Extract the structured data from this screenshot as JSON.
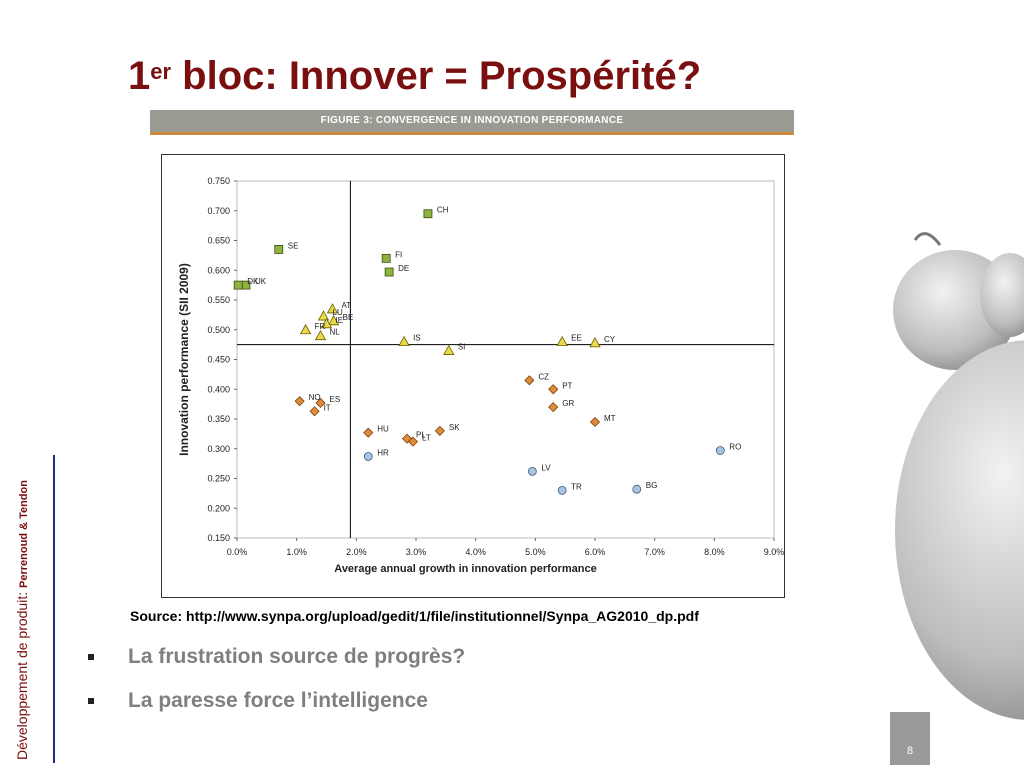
{
  "slide": {
    "title_num": "1",
    "title_sup": "er",
    "title_rest": " bloc: Innover = Prospérité?",
    "figure_caption": "FIGURE 3: CONVERGENCE IN INNOVATION PERFORMANCE",
    "source": "Source: http://www.synpa.org/upload/gedit/1/file/institutionnel/Synpa_AG2010_dp.pdf",
    "bullets": [
      "La frustration source de progrès?",
      "La paresse force l’intelligence"
    ],
    "side_text_main": "Développement de produit: ",
    "side_text_authors": "Perrenoud & Tendon",
    "page_number": "8"
  },
  "chart_data": {
    "type": "scatter",
    "xlabel": "Average annual growth in innovation performance",
    "ylabel": "Innovation performance (SII 2009)",
    "xlim": [
      0,
      9
    ],
    "ylim": [
      0.15,
      0.75
    ],
    "x_ticks": [
      "0.0%",
      "1.0%",
      "2.0%",
      "3.0%",
      "4.0%",
      "5.0%",
      "6.0%",
      "7.0%",
      "8.0%",
      "9.0%"
    ],
    "y_ticks": [
      "0.150",
      "0.200",
      "0.250",
      "0.300",
      "0.350",
      "0.400",
      "0.450",
      "0.500",
      "0.550",
      "0.600",
      "0.650",
      "0.700",
      "0.750"
    ],
    "reference_lines": {
      "x": 1.9,
      "y": 0.475
    },
    "grid": false,
    "series": [
      {
        "group": "leaders",
        "marker": "square",
        "color": "#8db43e",
        "points": [
          {
            "label": "CH",
            "x": 3.2,
            "y": 0.695
          },
          {
            "label": "SE",
            "x": 0.7,
            "y": 0.635
          },
          {
            "label": "FI",
            "x": 2.5,
            "y": 0.62
          },
          {
            "label": "DE",
            "x": 2.55,
            "y": 0.597
          },
          {
            "label": "UK",
            "x": 0.15,
            "y": 0.575
          },
          {
            "label": "DK",
            "x": 0.02,
            "y": 0.575
          }
        ]
      },
      {
        "group": "followers",
        "marker": "triangle",
        "color": "#e8d84a",
        "points": [
          {
            "label": "AT",
            "x": 1.6,
            "y": 0.535
          },
          {
            "label": "LU",
            "x": 1.45,
            "y": 0.523
          },
          {
            "label": "BE",
            "x": 1.62,
            "y": 0.515
          },
          {
            "label": "IE",
            "x": 1.5,
            "y": 0.51
          },
          {
            "label": "FR",
            "x": 1.15,
            "y": 0.5
          },
          {
            "label": "NL",
            "x": 1.4,
            "y": 0.49
          },
          {
            "label": "IS",
            "x": 2.8,
            "y": 0.48
          },
          {
            "label": "EE",
            "x": 5.45,
            "y": 0.48
          },
          {
            "label": "CY",
            "x": 6.0,
            "y": 0.478
          },
          {
            "label": "SI",
            "x": 3.55,
            "y": 0.465
          }
        ]
      },
      {
        "group": "moderate",
        "marker": "diamond",
        "color": "#e08a3c",
        "points": [
          {
            "label": "CZ",
            "x": 4.9,
            "y": 0.415
          },
          {
            "label": "PT",
            "x": 5.3,
            "y": 0.4
          },
          {
            "label": "GR",
            "x": 5.3,
            "y": 0.37
          },
          {
            "label": "MT",
            "x": 6.0,
            "y": 0.345
          },
          {
            "label": "NO",
            "x": 1.05,
            "y": 0.38
          },
          {
            "label": "ES",
            "x": 1.4,
            "y": 0.377
          },
          {
            "label": "IT",
            "x": 1.3,
            "y": 0.363
          },
          {
            "label": "HU",
            "x": 2.2,
            "y": 0.327
          },
          {
            "label": "SK",
            "x": 3.4,
            "y": 0.33
          },
          {
            "label": "PL",
            "x": 2.85,
            "y": 0.317
          },
          {
            "label": "LT",
            "x": 2.95,
            "y": 0.312
          }
        ]
      },
      {
        "group": "catching-up",
        "marker": "circle",
        "color": "#a8c4e0",
        "points": [
          {
            "label": "HR",
            "x": 2.2,
            "y": 0.287
          },
          {
            "label": "RO",
            "x": 8.1,
            "y": 0.297
          },
          {
            "label": "LV",
            "x": 4.95,
            "y": 0.262
          },
          {
            "label": "TR",
            "x": 5.45,
            "y": 0.23
          },
          {
            "label": "BG",
            "x": 6.7,
            "y": 0.232
          }
        ]
      }
    ]
  }
}
